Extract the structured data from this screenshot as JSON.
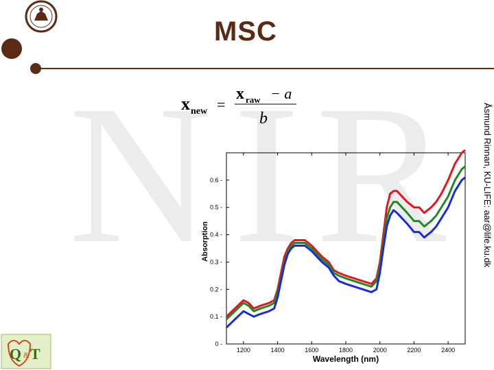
{
  "slide": {
    "title": "MSC",
    "side_credit": "Åsmund Rinnan, KU-LIFE: aar@life.ku.dk",
    "watermark_icon": "nir-watermark",
    "logo_icon": "qt-logo",
    "seal_icon": "university-seal-icon",
    "formula": {
      "lhs": "x",
      "lhs_sub": "new",
      "numerator": "x",
      "numerator_sub": "raw",
      "minus": "− a",
      "denominator": "b",
      "equals": "="
    }
  },
  "chart_data": {
    "type": "line",
    "title": "",
    "xlabel": "Wavelength (nm)",
    "ylabel": "Absorption",
    "xlim": [
      1100,
      2500
    ],
    "ylim": [
      0,
      0.7
    ],
    "xticks": [
      1200,
      1400,
      1600,
      1800,
      2000,
      2200,
      2400
    ],
    "yticks": [
      0,
      0.1,
      0.2,
      0.3,
      0.4,
      0.5,
      0.6
    ],
    "ytick_labels": [
      "0",
      "0.1",
      "0.2",
      "0.3",
      "0.4",
      "0.5",
      "0.6"
    ],
    "grid": false,
    "x": [
      1100,
      1150,
      1200,
      1230,
      1260,
      1300,
      1350,
      1380,
      1400,
      1420,
      1440,
      1460,
      1480,
      1500,
      1530,
      1560,
      1600,
      1630,
      1660,
      1700,
      1730,
      1760,
      1800,
      1850,
      1900,
      1950,
      1980,
      2000,
      2020,
      2040,
      2060,
      2080,
      2100,
      2130,
      2160,
      2200,
      2230,
      2260,
      2300,
      2330,
      2360,
      2400,
      2420,
      2440,
      2460,
      2480,
      2500
    ],
    "series": [
      {
        "color": "#e8141e",
        "values": [
          0.1,
          0.13,
          0.16,
          0.15,
          0.13,
          0.14,
          0.15,
          0.16,
          0.2,
          0.26,
          0.32,
          0.35,
          0.37,
          0.38,
          0.38,
          0.38,
          0.36,
          0.34,
          0.32,
          0.3,
          0.27,
          0.26,
          0.25,
          0.24,
          0.23,
          0.22,
          0.24,
          0.3,
          0.4,
          0.5,
          0.55,
          0.56,
          0.56,
          0.54,
          0.52,
          0.5,
          0.5,
          0.48,
          0.5,
          0.52,
          0.55,
          0.6,
          0.63,
          0.66,
          0.68,
          0.7,
          0.71
        ]
      },
      {
        "color": "#1f8a24",
        "values": [
          0.09,
          0.12,
          0.15,
          0.14,
          0.12,
          0.13,
          0.14,
          0.15,
          0.19,
          0.24,
          0.3,
          0.34,
          0.36,
          0.37,
          0.37,
          0.37,
          0.35,
          0.33,
          0.31,
          0.29,
          0.26,
          0.25,
          0.24,
          0.23,
          0.22,
          0.21,
          0.23,
          0.28,
          0.37,
          0.46,
          0.5,
          0.52,
          0.52,
          0.5,
          0.48,
          0.45,
          0.45,
          0.43,
          0.45,
          0.47,
          0.5,
          0.54,
          0.57,
          0.6,
          0.62,
          0.64,
          0.65
        ]
      },
      {
        "color": "#1a2bd6",
        "values": [
          0.06,
          0.09,
          0.12,
          0.11,
          0.1,
          0.11,
          0.12,
          0.13,
          0.17,
          0.23,
          0.29,
          0.33,
          0.35,
          0.36,
          0.36,
          0.36,
          0.34,
          0.32,
          0.3,
          0.28,
          0.25,
          0.23,
          0.22,
          0.21,
          0.2,
          0.19,
          0.2,
          0.26,
          0.35,
          0.43,
          0.47,
          0.49,
          0.48,
          0.46,
          0.44,
          0.41,
          0.41,
          0.39,
          0.41,
          0.43,
          0.46,
          0.5,
          0.53,
          0.56,
          0.58,
          0.6,
          0.61
        ]
      }
    ]
  }
}
